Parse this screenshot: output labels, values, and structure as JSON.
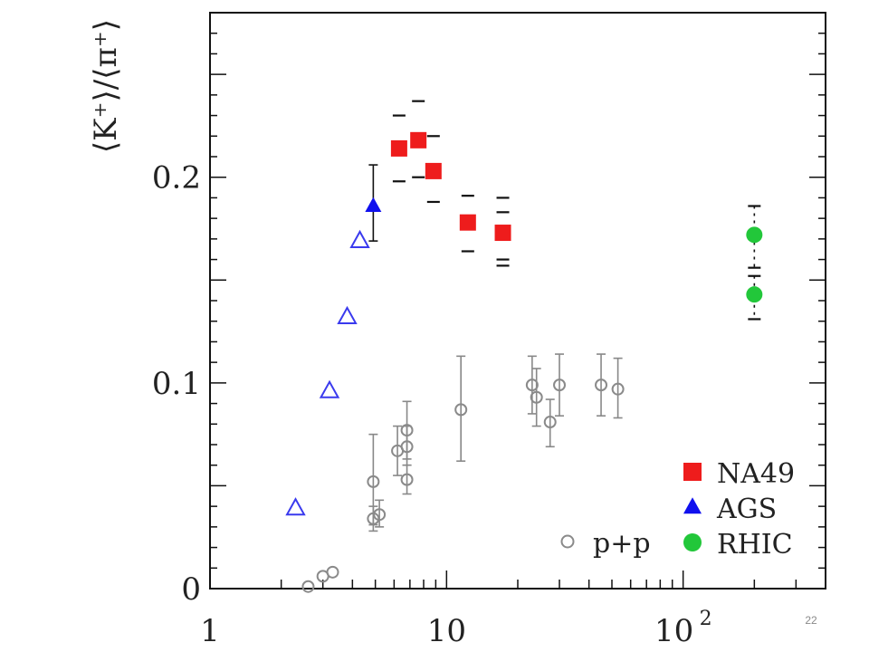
{
  "slide": {
    "page_number": "22"
  },
  "chart_data": {
    "type": "scatter",
    "title": "",
    "ylabel": "⟨K⁺⟩/⟨π⁺⟩",
    "xlabel": "",
    "x_scale": "log",
    "xlim": [
      1,
      400
    ],
    "ylim": [
      0,
      0.28
    ],
    "grid": false,
    "legend_placement": "bottom-right",
    "x_tick_labels": [
      {
        "value": 1,
        "base": "1",
        "sup": ""
      },
      {
        "value": 10,
        "base": "10",
        "sup": ""
      },
      {
        "value": 100,
        "base": "10",
        "sup": "2"
      }
    ],
    "y_tick_labels": [
      {
        "value": 0,
        "label": "0"
      },
      {
        "value": 0.1,
        "label": "0.1"
      },
      {
        "value": 0.2,
        "label": "0.2"
      }
    ],
    "series": [
      {
        "name": "NA49",
        "marker": "square",
        "filled": true,
        "color": "#ee1c1c",
        "points": [
          {
            "x": 6.3,
            "y": 0.214,
            "sys_hi": 0.23,
            "sys_lo": 0.198
          },
          {
            "x": 7.6,
            "y": 0.218,
            "sys_hi": 0.237,
            "sys_lo": 0.2
          },
          {
            "x": 8.8,
            "y": 0.203,
            "sys_hi": 0.22,
            "sys_lo": 0.188
          },
          {
            "x": 12.3,
            "y": 0.178,
            "sys_hi": 0.191,
            "sys_lo": 0.164
          },
          {
            "x": 17.3,
            "y": 0.173,
            "sys_hi": 0.19,
            "sys_lo": 0.157,
            "sys_mid": [
              0.183,
              0.16
            ]
          }
        ]
      },
      {
        "name": "AGS",
        "marker": "triangle",
        "filled": true,
        "color": "#1010ee",
        "points": [
          {
            "x": 4.9,
            "y": 0.186,
            "err_hi": 0.206,
            "err_lo": 0.169
          }
        ]
      },
      {
        "name": "",
        "marker": "triangle",
        "filled": false,
        "color": "#3a3aee",
        "points": [
          {
            "x": 2.3,
            "y": 0.039
          },
          {
            "x": 3.2,
            "y": 0.096
          },
          {
            "x": 3.8,
            "y": 0.132
          },
          {
            "x": 4.3,
            "y": 0.169
          }
        ]
      },
      {
        "name": "RHIC",
        "marker": "circle",
        "filled": true,
        "color": "#22c73a",
        "points": [
          {
            "x": 200,
            "y": 0.172,
            "sys_hi": 0.186,
            "sys_lo": 0.156
          },
          {
            "x": 200,
            "y": 0.143,
            "sys_hi": 0.152,
            "sys_lo": 0.131
          }
        ]
      },
      {
        "name": "p+p",
        "marker": "circle",
        "filled": false,
        "color": "#8a8a8a",
        "points": [
          {
            "x": 2.6,
            "y": 0.001
          },
          {
            "x": 3.0,
            "y": 0.006
          },
          {
            "x": 3.3,
            "y": 0.008
          },
          {
            "x": 4.9,
            "y": 0.052,
            "err_hi": 0.075,
            "err_lo": 0.031
          },
          {
            "x": 4.9,
            "y": 0.034,
            "err_hi": 0.04,
            "err_lo": 0.028
          },
          {
            "x": 5.2,
            "y": 0.036,
            "err_hi": 0.043,
            "err_lo": 0.03
          },
          {
            "x": 6.2,
            "y": 0.067,
            "err_hi": 0.079,
            "err_lo": 0.055
          },
          {
            "x": 6.8,
            "y": 0.077,
            "err_hi": 0.091,
            "err_lo": 0.063
          },
          {
            "x": 6.8,
            "y": 0.069,
            "err_hi": 0.079,
            "err_lo": 0.06
          },
          {
            "x": 6.8,
            "y": 0.053,
            "err_hi": 0.06,
            "err_lo": 0.046
          },
          {
            "x": 11.5,
            "y": 0.087,
            "err_hi": 0.113,
            "err_lo": 0.062
          },
          {
            "x": 23,
            "y": 0.099,
            "err_hi": 0.113,
            "err_lo": 0.085
          },
          {
            "x": 24,
            "y": 0.093,
            "err_hi": 0.107,
            "err_lo": 0.079
          },
          {
            "x": 27.4,
            "y": 0.081,
            "err_hi": 0.092,
            "err_lo": 0.069
          },
          {
            "x": 30,
            "y": 0.099,
            "err_hi": 0.114,
            "err_lo": 0.084
          },
          {
            "x": 45,
            "y": 0.099,
            "err_hi": 0.114,
            "err_lo": 0.084
          },
          {
            "x": 53,
            "y": 0.097,
            "err_hi": 0.112,
            "err_lo": 0.083
          }
        ]
      }
    ],
    "legend": [
      {
        "label": "NA49",
        "marker": "square",
        "filled": true,
        "color": "#ee1c1c"
      },
      {
        "label": "AGS",
        "marker": "triangle",
        "filled": true,
        "color": "#1010ee"
      },
      {
        "label": "RHIC",
        "marker": "circle",
        "filled": true,
        "color": "#22c73a"
      },
      {
        "label": "p+p",
        "marker": "circle",
        "filled": false,
        "color": "#8a8a8a"
      }
    ]
  }
}
